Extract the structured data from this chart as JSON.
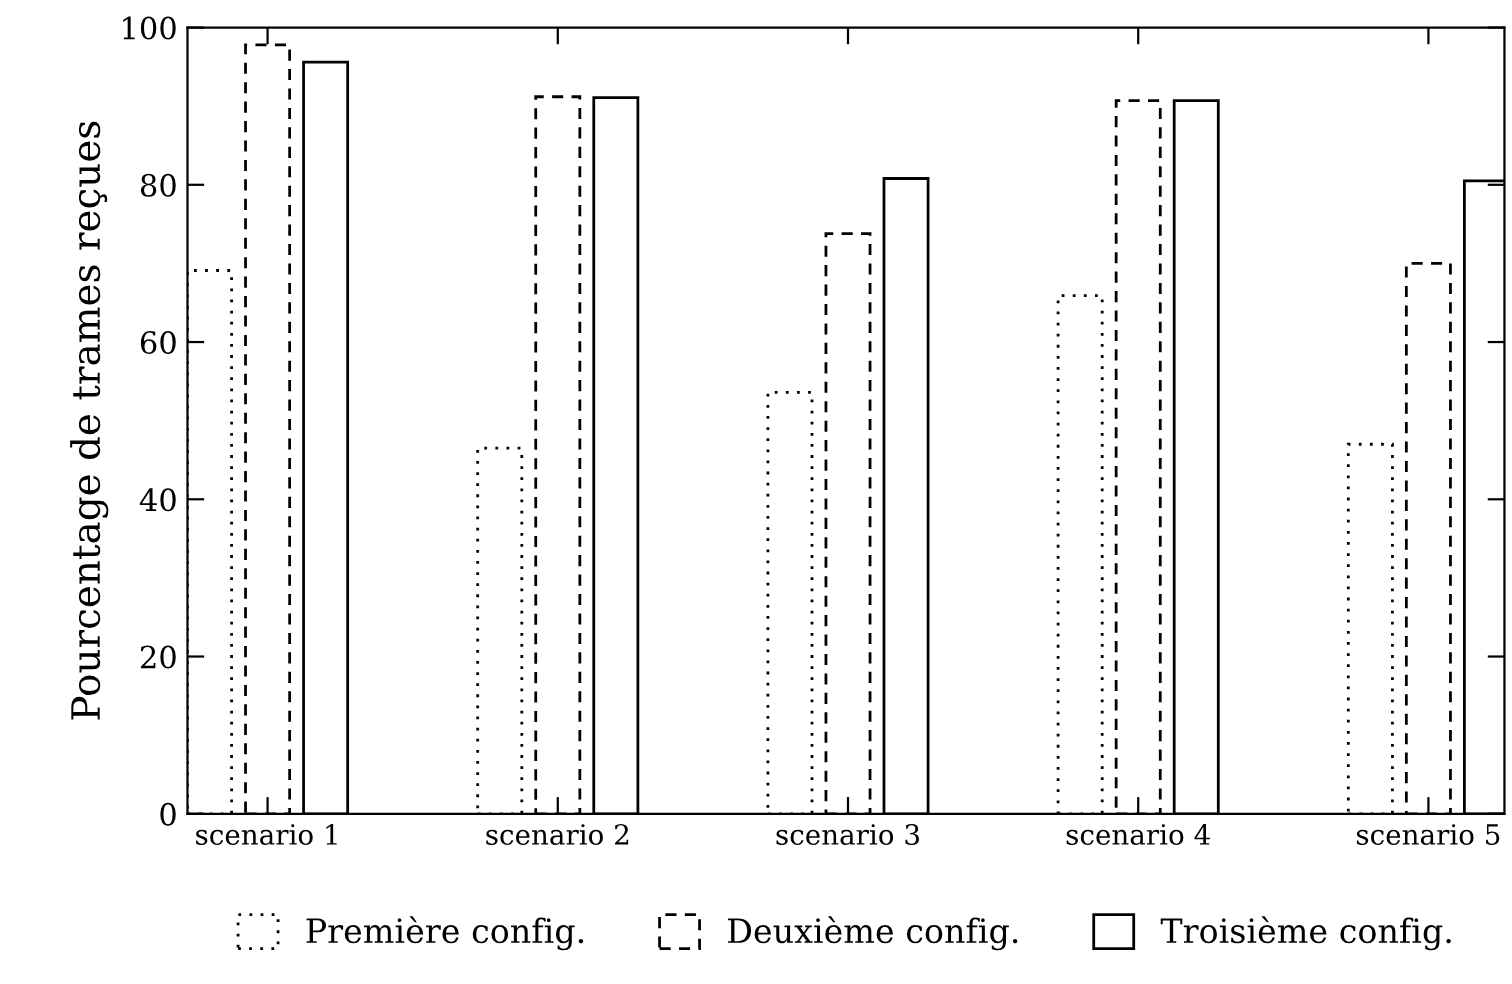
{
  "chart_data": {
    "type": "bar",
    "ylabel": "Pourcentage de trames reçues",
    "categories": [
      "scenario 1",
      "scenario 2",
      "scenario 3",
      "scenario 4",
      "scenario 5"
    ],
    "series": [
      {
        "name": "Première config.",
        "color": "#000000",
        "line_style": "dotted",
        "values": [
          69.1,
          46.5,
          53.6,
          65.9,
          47.0
        ]
      },
      {
        "name": "Deuxième config.",
        "color": "#000000",
        "line_style": "dashed",
        "values": [
          97.8,
          91.2,
          73.8,
          90.7,
          70.0
        ]
      },
      {
        "name": "Troisième config.",
        "color": "#000000",
        "line_style": "solid",
        "values": [
          95.6,
          91.1,
          80.8,
          90.7,
          80.5
        ]
      }
    ],
    "ylim": [
      0,
      100
    ],
    "yticks": [
      0,
      20,
      40,
      60,
      80,
      100
    ],
    "grid": false,
    "legend": "bottom"
  }
}
